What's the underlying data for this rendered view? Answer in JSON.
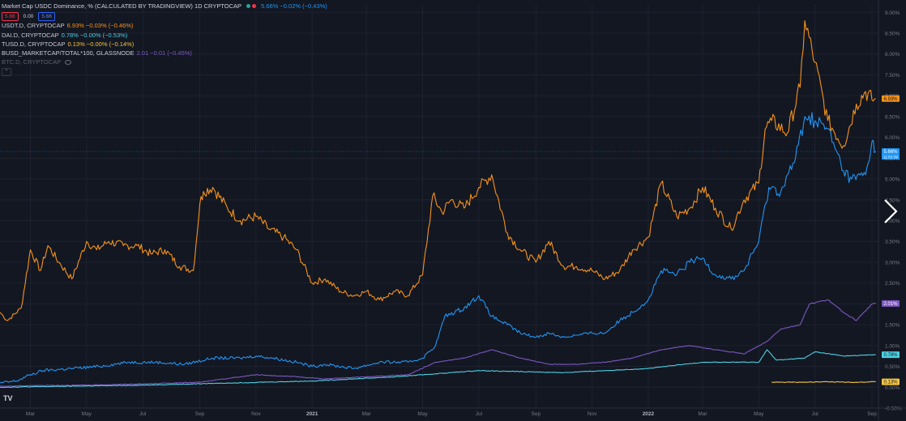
{
  "legend": {
    "title": "Market Cap USDC Dominance, % (CALCULATED BY TRADINGVIEW)  1D  CRYPTOCAP",
    "title_value": "5.66%  −0.02% (−0.43%)",
    "title_value_color": "#2196f3",
    "price_boxes": [
      "5.66",
      "0.00",
      "5.66"
    ],
    "rows": [
      {
        "name": "USDT.D, CRYPTOCAP",
        "value": "6.93%  −0.03% (−0.46%)",
        "color": "#f7931a"
      },
      {
        "name": "DAI.D, CRYPTOCAP",
        "value": "0.78%  −0.00% (−0.53%)",
        "color": "#4dd0e1"
      },
      {
        "name": "TUSD.D, CRYPTOCAP",
        "value": "0.13%  −0.00% (−0.14%)",
        "color": "#f5c542"
      },
      {
        "name": "BUSD_MARKETCAP/TOTAL*100, GLASSNODE",
        "value": "2.01  −0.01 (−0.45%)",
        "color": "#7e57c2"
      },
      {
        "name": "BTC.D, CRYPTOCAP",
        "value": "",
        "color": "#6a6d78"
      }
    ]
  },
  "chart_data": {
    "type": "line",
    "title": "Market Cap USDC Dominance, % (CALCULATED BY TRADINGVIEW)",
    "ylabel": "%",
    "ylim": [
      -0.5,
      9.2
    ],
    "y_ticks": [
      "9.00%",
      "8.50%",
      "8.00%",
      "7.50%",
      "7.00%",
      "6.50%",
      "6.00%",
      "5.50%",
      "5.00%",
      "4.50%",
      "4.00%",
      "3.50%",
      "3.00%",
      "2.50%",
      "2.00%",
      "1.50%",
      "1.00%",
      "0.50%",
      "0.00%",
      "-0.50%"
    ],
    "y_tick_values": [
      9.0,
      8.5,
      8.0,
      7.5,
      7.0,
      6.5,
      6.0,
      5.5,
      5.0,
      4.5,
      4.0,
      3.5,
      3.0,
      2.5,
      2.0,
      1.5,
      1.0,
      0.5,
      0.0,
      -0.5
    ],
    "x_ticks": [
      "Mar",
      "May",
      "Jul",
      "Sep",
      "Nov",
      "2021",
      "Mar",
      "May",
      "Jul",
      "Sep",
      "Nov",
      "2022",
      "Mar",
      "May",
      "Jul",
      "Sep"
    ],
    "x_tick_values": [
      "2020-03-01",
      "2020-05-01",
      "2020-07-01",
      "2020-09-01",
      "2020-11-01",
      "2021-01-01",
      "2021-03-01",
      "2021-05-01",
      "2021-07-01",
      "2021-09-01",
      "2021-11-01",
      "2022-01-01",
      "2022-03-01",
      "2022-05-01",
      "2022-07-01",
      "2022-09-01"
    ],
    "x_range": [
      "2020-01-28",
      "2022-09-08"
    ],
    "series": [
      {
        "name": "USDT.D, CRYPTOCAP",
        "color": "#f7931a",
        "x": [
          "2020-01-28",
          "2020-02-05",
          "2020-02-20",
          "2020-03-01",
          "2020-03-12",
          "2020-03-20",
          "2020-04-01",
          "2020-04-15",
          "2020-05-01",
          "2020-05-12",
          "2020-05-25",
          "2020-06-10",
          "2020-06-25",
          "2020-07-10",
          "2020-07-25",
          "2020-08-10",
          "2020-08-25",
          "2020-09-01",
          "2020-09-05",
          "2020-09-15",
          "2020-10-01",
          "2020-10-15",
          "2020-11-01",
          "2020-11-15",
          "2020-12-01",
          "2020-12-15",
          "2021-01-01",
          "2021-01-15",
          "2021-02-01",
          "2021-02-15",
          "2021-03-01",
          "2021-03-15",
          "2021-04-01",
          "2021-04-15",
          "2021-05-01",
          "2021-05-12",
          "2021-05-22",
          "2021-06-01",
          "2021-06-15",
          "2021-07-01",
          "2021-07-15",
          "2021-08-01",
          "2021-08-15",
          "2021-09-01",
          "2021-09-15",
          "2021-10-01",
          "2021-10-15",
          "2021-11-01",
          "2021-11-15",
          "2021-12-01",
          "2021-12-15",
          "2022-01-01",
          "2022-01-15",
          "2022-02-01",
          "2022-02-15",
          "2022-03-01",
          "2022-03-15",
          "2022-04-01",
          "2022-04-15",
          "2022-05-01",
          "2022-05-08",
          "2022-05-15",
          "2022-06-01",
          "2022-06-15",
          "2022-06-20",
          "2022-07-01",
          "2022-07-15",
          "2022-08-01",
          "2022-08-15",
          "2022-08-25",
          "2022-09-01",
          "2022-09-05"
        ],
        "values": [
          1.8,
          1.6,
          1.9,
          3.3,
          2.8,
          3.4,
          3.0,
          2.6,
          3.5,
          3.3,
          3.5,
          3.4,
          3.4,
          3.2,
          3.3,
          2.9,
          2.8,
          4.4,
          4.7,
          4.8,
          4.3,
          4.0,
          4.1,
          3.8,
          3.6,
          3.3,
          2.5,
          2.6,
          2.3,
          2.2,
          2.3,
          2.1,
          2.3,
          2.2,
          2.7,
          4.6,
          4.2,
          4.5,
          4.3,
          4.8,
          5.1,
          3.7,
          3.3,
          3.0,
          3.5,
          2.9,
          2.9,
          2.8,
          2.6,
          2.8,
          3.3,
          3.6,
          4.9,
          4.1,
          4.3,
          4.8,
          4.3,
          3.8,
          4.5,
          4.9,
          6.2,
          6.4,
          6.1,
          7.2,
          8.8,
          7.8,
          6.4,
          5.8,
          6.8,
          7.1,
          6.9,
          6.93
        ]
      },
      {
        "name": "USDC",
        "color": "#2196f3",
        "x": [
          "2020-01-28",
          "2020-02-15",
          "2020-03-01",
          "2020-03-15",
          "2020-04-15",
          "2020-05-15",
          "2020-06-15",
          "2020-07-15",
          "2020-08-15",
          "2020-09-15",
          "2020-10-15",
          "2020-11-01",
          "2020-11-20",
          "2020-12-15",
          "2021-01-01",
          "2021-01-15",
          "2021-02-15",
          "2021-03-15",
          "2021-04-15",
          "2021-05-01",
          "2021-05-15",
          "2021-05-25",
          "2021-06-15",
          "2021-07-01",
          "2021-07-15",
          "2021-08-01",
          "2021-08-15",
          "2021-09-01",
          "2021-09-15",
          "2021-10-01",
          "2021-10-15",
          "2021-11-01",
          "2021-11-15",
          "2021-12-01",
          "2021-12-15",
          "2022-01-01",
          "2022-01-15",
          "2022-02-01",
          "2022-02-15",
          "2022-03-01",
          "2022-03-15",
          "2022-04-01",
          "2022-04-15",
          "2022-05-01",
          "2022-05-12",
          "2022-05-25",
          "2022-06-10",
          "2022-06-20",
          "2022-07-01",
          "2022-07-15",
          "2022-08-01",
          "2022-08-10",
          "2022-08-25",
          "2022-09-01",
          "2022-09-05"
        ],
        "values": [
          0.1,
          0.15,
          0.3,
          0.4,
          0.45,
          0.5,
          0.6,
          0.6,
          0.55,
          0.7,
          0.7,
          0.75,
          0.7,
          0.6,
          0.5,
          0.55,
          0.45,
          0.6,
          0.6,
          0.7,
          1.0,
          1.7,
          1.9,
          2.2,
          1.7,
          1.5,
          1.3,
          1.2,
          1.3,
          1.2,
          1.25,
          1.3,
          1.3,
          1.6,
          1.8,
          2.1,
          2.8,
          2.7,
          3.0,
          3.1,
          2.7,
          2.6,
          2.8,
          3.5,
          4.8,
          4.7,
          5.5,
          6.5,
          6.4,
          6.2,
          5.2,
          5.0,
          5.1,
          5.9,
          5.66
        ]
      },
      {
        "name": "BUSD_MARKETCAP/TOTAL*100, GLASSNODE",
        "color": "#7e57c2",
        "x": [
          "2020-01-28",
          "2020-03-01",
          "2020-05-01",
          "2020-07-01",
          "2020-09-01",
          "2020-10-15",
          "2020-11-01",
          "2020-12-15",
          "2021-01-15",
          "2021-03-01",
          "2021-04-15",
          "2021-05-15",
          "2021-06-15",
          "2021-07-15",
          "2021-08-15",
          "2021-09-15",
          "2021-10-15",
          "2021-11-15",
          "2021-12-15",
          "2022-01-15",
          "2022-02-15",
          "2022-03-15",
          "2022-04-15",
          "2022-05-10",
          "2022-05-25",
          "2022-06-15",
          "2022-06-25",
          "2022-07-15",
          "2022-08-01",
          "2022-08-15",
          "2022-09-01",
          "2022-09-05"
        ],
        "values": [
          0.02,
          0.04,
          0.05,
          0.08,
          0.12,
          0.25,
          0.3,
          0.25,
          0.2,
          0.25,
          0.3,
          0.6,
          0.7,
          0.9,
          0.7,
          0.55,
          0.55,
          0.6,
          0.7,
          0.9,
          1.0,
          0.9,
          0.8,
          1.1,
          1.4,
          1.5,
          2.0,
          2.1,
          1.8,
          1.6,
          2.0,
          2.01
        ]
      },
      {
        "name": "DAI.D, CRYPTOCAP",
        "color": "#4dd0e1",
        "x": [
          "2020-01-28",
          "2020-04-01",
          "2020-07-01",
          "2020-10-01",
          "2021-01-01",
          "2021-04-01",
          "2021-07-01",
          "2021-10-01",
          "2022-01-01",
          "2022-03-01",
          "2022-05-01",
          "2022-05-10",
          "2022-05-20",
          "2022-06-20",
          "2022-07-01",
          "2022-08-01",
          "2022-09-05"
        ],
        "values": [
          0.0,
          0.02,
          0.05,
          0.1,
          0.15,
          0.25,
          0.4,
          0.35,
          0.45,
          0.6,
          0.6,
          0.9,
          0.65,
          0.7,
          0.85,
          0.75,
          0.78
        ]
      },
      {
        "name": "TUSD.D, CRYPTOCAP",
        "color": "#f5c542",
        "x": [
          "2022-05-15",
          "2022-06-15",
          "2022-07-15",
          "2022-08-15",
          "2022-09-05"
        ],
        "values": [
          0.12,
          0.12,
          0.13,
          0.12,
          0.13
        ]
      }
    ],
    "last_labels": [
      {
        "text": "6.93%",
        "value": 6.93,
        "bg": "#f7931a",
        "fg": "#131722"
      },
      {
        "text": "5.66%",
        "value": 5.66,
        "bg": "#2196f3",
        "fg": "#ffffff",
        "sub": "11:53:39"
      },
      {
        "text": "2.01%",
        "value": 2.01,
        "bg": "#7e57c2",
        "fg": "#ffffff"
      },
      {
        "text": "0.78%",
        "value": 0.78,
        "bg": "#4dd0e1",
        "fg": "#131722"
      },
      {
        "text": "0.13%",
        "value": 0.13,
        "bg": "#f5c542",
        "fg": "#131722"
      }
    ],
    "grid": true,
    "current_price_line": 5.66
  },
  "colors": {
    "background": "#131722",
    "grid": "#1e2230",
    "axis_text": "#787b86"
  }
}
